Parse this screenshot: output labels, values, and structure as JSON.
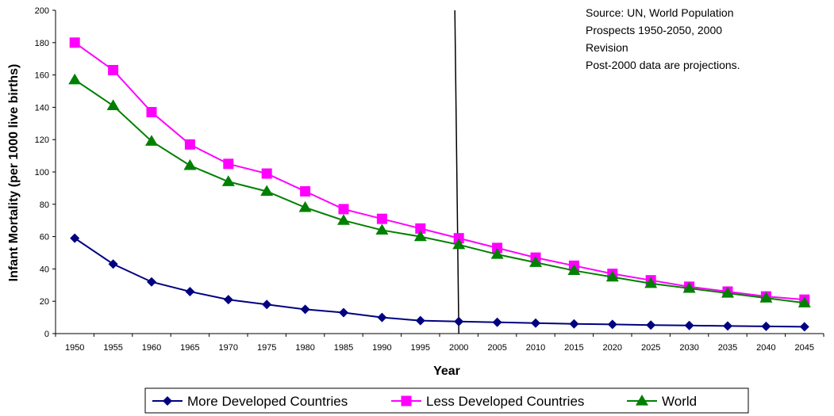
{
  "chart_data": {
    "type": "line",
    "xlabel": "Year",
    "ylabel": "Infant Mortality (per 1000 live births)",
    "ylim": [
      0,
      200
    ],
    "yticks": [
      0,
      20,
      40,
      60,
      80,
      100,
      120,
      140,
      160,
      180,
      200
    ],
    "x": [
      "1950",
      "1955",
      "1960",
      "1965",
      "1970",
      "1975",
      "1980",
      "1985",
      "1990",
      "1995",
      "2000",
      "2005",
      "2010",
      "2015",
      "2020",
      "2025",
      "2030",
      "2035",
      "2040",
      "2045"
    ],
    "series": [
      {
        "name": "More Developed Countries",
        "color": "#000080",
        "marker": "diamond",
        "values": [
          59,
          43,
          32,
          26,
          21,
          18,
          15,
          13,
          10,
          8,
          7.5,
          7,
          6.5,
          6,
          5.7,
          5.3,
          5,
          4.7,
          4.5,
          4.2
        ]
      },
      {
        "name": "Less Developed Countries",
        "color": "#ff00ff",
        "marker": "square",
        "values": [
          180,
          163,
          137,
          117,
          105,
          99,
          88,
          77,
          71,
          65,
          59,
          53,
          47,
          42,
          37,
          33,
          29,
          26,
          23,
          21
        ]
      },
      {
        "name": "World",
        "color": "#008000",
        "marker": "triangle",
        "values": [
          157,
          141,
          119,
          104,
          94,
          88,
          78,
          70,
          64,
          60,
          55,
          49,
          44,
          39,
          35,
          31,
          28,
          25,
          22,
          19
        ]
      }
    ],
    "vline_x": "2000",
    "annotations": [
      "Source:  UN, World Population",
      "Prospects 1950-2050, 2000",
      "Revision",
      "Post-2000 data are projections."
    ],
    "legend_position": "bottom"
  }
}
